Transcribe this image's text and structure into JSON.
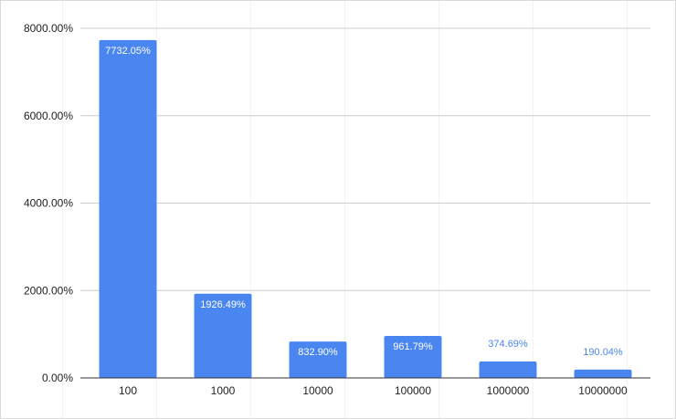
{
  "chart_data": {
    "type": "bar",
    "categories": [
      "100",
      "1000",
      "10000",
      "100000",
      "1000000",
      "10000000"
    ],
    "values": [
      7732.05,
      1926.49,
      832.9,
      961.79,
      374.69,
      190.04
    ],
    "data_labels": [
      "7732.05%",
      "1926.49%",
      "832.90%",
      "961.79%",
      "374.69%",
      "190.04%"
    ],
    "y_ticks": [
      0,
      2000,
      4000,
      6000,
      8000
    ],
    "y_tick_labels": [
      "0.00%",
      "2000.00%",
      "4000.00%",
      "6000.00%",
      "8000.00%"
    ],
    "ylim": [
      0,
      8000
    ],
    "grid": true,
    "legend": "none",
    "bar_color": "#4a86f0",
    "title": "",
    "xlabel": "",
    "ylabel": ""
  }
}
